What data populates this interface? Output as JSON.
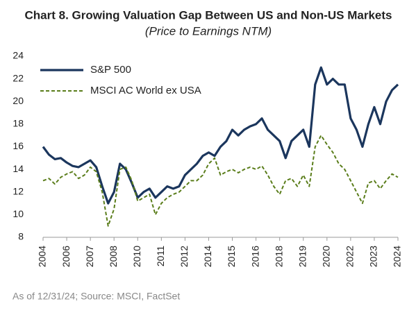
{
  "chart_data": {
    "type": "line",
    "title": "Chart 8. Growing Valuation Gap Between US and Non-US Markets",
    "subtitle": "(Price to Earnings NTM)",
    "note": "As of 12/31/24; Source: MSCI, FactSet",
    "categories": [
      "2004",
      null,
      null,
      null,
      "2006",
      null,
      null,
      null,
      "2007",
      null,
      null,
      null,
      "2008",
      null,
      null,
      null,
      "2010",
      null,
      null,
      null,
      "2011",
      null,
      null,
      null,
      "2012",
      null,
      null,
      null,
      "2014",
      null,
      null,
      null,
      "2015",
      null,
      null,
      null,
      "2016",
      null,
      null,
      null,
      "2018",
      null,
      null,
      null,
      "2019",
      null,
      null,
      null,
      "2020",
      null,
      null,
      null,
      "2022",
      null,
      null,
      null,
      "2023",
      null,
      null,
      null,
      "2024"
    ],
    "series": [
      {
        "name": "S&P 500",
        "color": "#1b365d",
        "dashed": false,
        "values": [
          16.0,
          15.3,
          14.9,
          15.0,
          14.6,
          14.3,
          14.2,
          14.5,
          14.8,
          14.2,
          12.5,
          11.0,
          12.0,
          14.5,
          14.0,
          12.8,
          11.5,
          12.0,
          12.3,
          11.5,
          12.0,
          12.5,
          12.3,
          12.5,
          13.5,
          14.0,
          14.5,
          15.2,
          15.5,
          15.2,
          16.0,
          16.5,
          17.5,
          17.0,
          17.5,
          17.8,
          18.0,
          18.5,
          17.5,
          17.0,
          16.5,
          15.0,
          16.5,
          17.0,
          17.5,
          16.0,
          21.5,
          23.0,
          21.5,
          22.0,
          21.5,
          21.5,
          18.5,
          17.5,
          16.0,
          18.0,
          19.5,
          18.0,
          20.0,
          21.0,
          21.5
        ]
      },
      {
        "name": "MSCI AC World ex USA",
        "color": "#5a7d1a",
        "dashed": true,
        "values": [
          13.0,
          13.2,
          12.7,
          13.3,
          13.6,
          13.8,
          13.2,
          13.5,
          14.2,
          13.8,
          12.0,
          9.0,
          10.5,
          14.0,
          14.2,
          13.0,
          11.2,
          11.5,
          11.8,
          10.0,
          11.0,
          11.5,
          11.8,
          12.0,
          12.5,
          13.0,
          13.0,
          13.5,
          14.5,
          15.0,
          13.5,
          13.8,
          14.0,
          13.7,
          14.0,
          14.2,
          14.0,
          14.3,
          13.5,
          12.5,
          11.8,
          13.0,
          13.2,
          12.5,
          13.5,
          12.5,
          16.0,
          17.0,
          16.2,
          15.5,
          14.5,
          14.0,
          13.0,
          12.0,
          11.0,
          12.8,
          13.0,
          12.3,
          13.0,
          13.6,
          13.3
        ]
      }
    ],
    "ylim": [
      8,
      24
    ],
    "yticks": [
      8,
      10,
      12,
      14,
      16,
      18,
      20,
      22,
      24
    ],
    "grid": false,
    "legend": "top-left"
  }
}
